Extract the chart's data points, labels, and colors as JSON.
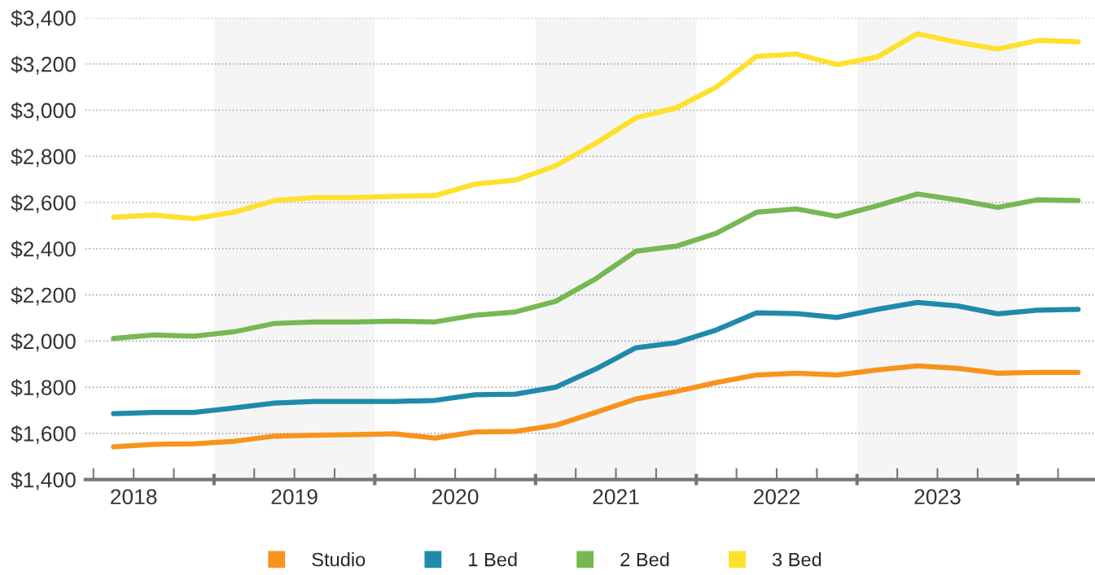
{
  "chart_data": {
    "type": "line",
    "x": [
      2018.375,
      2018.625,
      2018.875,
      2019.125,
      2019.375,
      2019.625,
      2019.875,
      2020.125,
      2020.375,
      2020.625,
      2020.875,
      2021.125,
      2021.375,
      2021.625,
      2021.875,
      2022.125,
      2022.375,
      2022.625,
      2022.875,
      2023.125,
      2023.375,
      2023.625,
      2023.875,
      2024.125,
      2024.375
    ],
    "series": [
      {
        "name": "Studio",
        "color": "#f7941d",
        "values": [
          1542,
          1552,
          1555,
          1566,
          1588,
          1592,
          1595,
          1598,
          1580,
          1606,
          1609,
          1635,
          1691,
          1749,
          1782,
          1820,
          1853,
          1861,
          1853,
          1875,
          1892,
          1882,
          1861,
          1864,
          1864
        ]
      },
      {
        "name": "1 Bed",
        "color": "#1f8aab",
        "values": [
          1685,
          1691,
          1691,
          1710,
          1731,
          1738,
          1738,
          1738,
          1743,
          1767,
          1770,
          1800,
          1879,
          1971,
          1993,
          2048,
          2122,
          2119,
          2102,
          2137,
          2167,
          2152,
          2118,
          2134,
          2137
        ]
      },
      {
        "name": "2 Bed",
        "color": "#76b852",
        "values": [
          2011,
          2026,
          2021,
          2040,
          2076,
          2083,
          2083,
          2086,
          2083,
          2112,
          2126,
          2172,
          2270,
          2389,
          2411,
          2467,
          2558,
          2572,
          2540,
          2586,
          2637,
          2611,
          2579,
          2612,
          2608
        ]
      },
      {
        "name": "3 Bed",
        "color": "#fde12d",
        "values": [
          2536,
          2546,
          2530,
          2558,
          2608,
          2622,
          2622,
          2627,
          2630,
          2680,
          2697,
          2759,
          2857,
          2967,
          3010,
          3100,
          3233,
          3243,
          3197,
          3230,
          3331,
          3294,
          3265,
          3302,
          3296
        ]
      }
    ],
    "xlim": [
      2018.2,
      2024.48
    ],
    "xticks": [
      {
        "value": 2018.25,
        "label": null
      },
      {
        "value": 2018.5,
        "label": "2018"
      },
      {
        "value": 2018.75,
        "label": null
      },
      {
        "value": 2019,
        "label": null
      },
      {
        "value": 2019.25,
        "label": null
      },
      {
        "value": 2019.5,
        "label": "2019"
      },
      {
        "value": 2019.75,
        "label": null
      },
      {
        "value": 2020,
        "label": null
      },
      {
        "value": 2020.25,
        "label": null
      },
      {
        "value": 2020.5,
        "label": "2020"
      },
      {
        "value": 2020.75,
        "label": null
      },
      {
        "value": 2021,
        "label": null
      },
      {
        "value": 2021.25,
        "label": null
      },
      {
        "value": 2021.5,
        "label": "2021"
      },
      {
        "value": 2021.75,
        "label": null
      },
      {
        "value": 2022,
        "label": null
      },
      {
        "value": 2022.25,
        "label": null
      },
      {
        "value": 2022.5,
        "label": "2022"
      },
      {
        "value": 2022.75,
        "label": null
      },
      {
        "value": 2023,
        "label": null
      },
      {
        "value": 2023.25,
        "label": null
      },
      {
        "value": 2023.5,
        "label": "2023"
      },
      {
        "value": 2023.75,
        "label": null
      },
      {
        "value": 2024,
        "label": null
      },
      {
        "value": 2024.25,
        "label": null
      }
    ],
    "ylim": [
      1400,
      3400
    ],
    "yticks": [
      {
        "value": 1400,
        "label": "$1,400"
      },
      {
        "value": 1600,
        "label": "$1,600"
      },
      {
        "value": 1800,
        "label": "$1,800"
      },
      {
        "value": 2000,
        "label": "$2,000"
      },
      {
        "value": 2200,
        "label": "$2,200"
      },
      {
        "value": 2400,
        "label": "$2,400"
      },
      {
        "value": 2600,
        "label": "$2,600"
      },
      {
        "value": 2800,
        "label": "$2,800"
      },
      {
        "value": 3000,
        "label": "$3,000"
      },
      {
        "value": 3200,
        "label": "$3,200"
      },
      {
        "value": 3400,
        "label": "$3,400"
      }
    ],
    "bands": [
      {
        "axis": "x",
        "from": 2019,
        "to": 2020,
        "color": "#f5f5f5"
      },
      {
        "axis": "x",
        "from": 2021,
        "to": 2022,
        "color": "#f5f5f5"
      },
      {
        "axis": "x",
        "from": 2023,
        "to": 2024,
        "color": "#f5f5f5"
      }
    ],
    "grid": "y",
    "legend": "bottom",
    "line_style": "solid"
  }
}
